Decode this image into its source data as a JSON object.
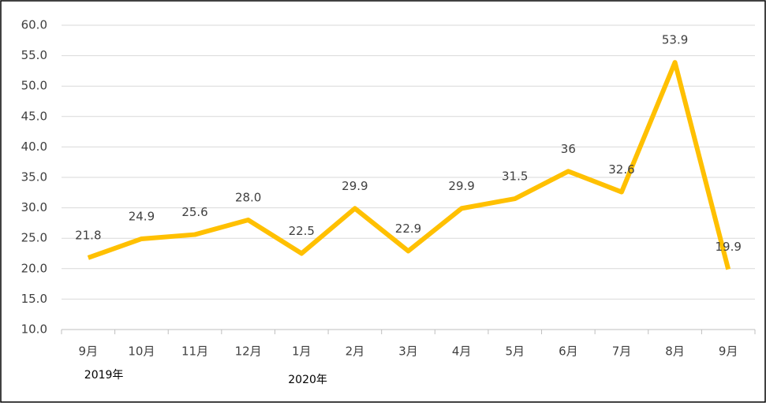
{
  "chart_data": {
    "type": "line",
    "categories": [
      "9月",
      "10月",
      "11月",
      "12月",
      "1月",
      "2月",
      "3月",
      "4月",
      "5月",
      "6月",
      "7月",
      "8月",
      "9月"
    ],
    "year_labels": [
      "2019年",
      null,
      null,
      null,
      "2020年",
      null,
      null,
      null,
      null,
      null,
      null,
      null,
      null
    ],
    "values": [
      21.8,
      24.9,
      25.6,
      28.0,
      22.5,
      29.9,
      22.9,
      29.9,
      31.5,
      36,
      32.6,
      53.9,
      19.9
    ],
    "value_labels": [
      "21.8",
      "24.9",
      "25.6",
      "28.0",
      "22.5",
      "29.9",
      "22.9",
      "29.9",
      "31.5",
      "36",
      "32.6",
      "53.9",
      "19.9"
    ],
    "color": "#FFC000",
    "ylim": [
      10,
      60
    ],
    "yticks": [
      {
        "value": 10,
        "label": "10.0"
      },
      {
        "value": 15,
        "label": "15.0"
      },
      {
        "value": 20,
        "label": "20.0"
      },
      {
        "value": 25,
        "label": "25.0"
      },
      {
        "value": 30,
        "label": "30.0"
      },
      {
        "value": 35,
        "label": "35.0"
      },
      {
        "value": 40,
        "label": "40.0"
      },
      {
        "value": 45,
        "label": "45.0"
      },
      {
        "value": 50,
        "label": "50.0"
      },
      {
        "value": 55,
        "label": "55.0"
      },
      {
        "value": 60,
        "label": "60.0"
      }
    ],
    "grid": true
  }
}
